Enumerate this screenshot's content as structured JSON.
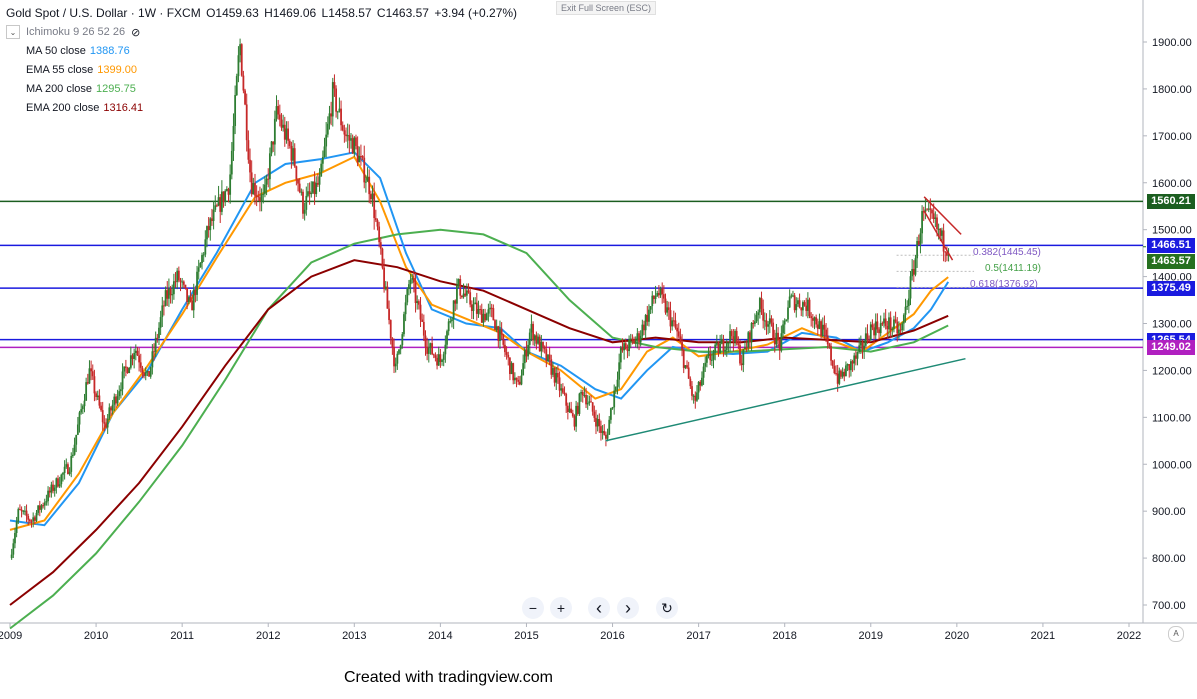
{
  "header": {
    "symbol": "Gold Spot / U.S. Dollar · 1W · FXCM",
    "open": "O1459.63",
    "high": "H1469.06",
    "low": "L1458.57",
    "close": "C1463.57",
    "change": "+3.94 (+0.27%)",
    "ichimoku": "Ichimoku 9 26 52 26",
    "exit_fullscreen": "Exit Full Screen (ESC)"
  },
  "indicators": [
    {
      "name": "MA 50 close",
      "value": "1388.76",
      "color": "#2196f3"
    },
    {
      "name": "EMA 55 close",
      "value": "1399.00",
      "color": "#ff9800"
    },
    {
      "name": "MA 200 close",
      "value": "1295.75",
      "color": "#4caf50"
    },
    {
      "name": "EMA 200 close",
      "value": "1316.41",
      "color": "#8b0000"
    }
  ],
  "price_labels": [
    {
      "text": "1560.21",
      "color": "#1b5e20"
    },
    {
      "text": "1466.51",
      "color": "#1a1adf"
    },
    {
      "text": "1463.57",
      "color": "#26701f"
    },
    {
      "text": "1375.49",
      "color": "#1a1adf"
    },
    {
      "text": "1265.54",
      "color": "#1a1adf"
    },
    {
      "text": "1249.02",
      "color": "#b020c0"
    }
  ],
  "fib_labels": [
    {
      "text": "0.382(1445.45)",
      "color": "#7e57c2"
    },
    {
      "text": "0.5(1411.19)",
      "color": "#43a047"
    },
    {
      "text": "0.618(1376.92)",
      "color": "#7e57c2"
    }
  ],
  "toolbar": {
    "zoom_out": "−",
    "zoom_in": "+",
    "scroll_left": "‹",
    "scroll_right": "›",
    "reset": "↻",
    "auto_scale": "A"
  },
  "footer": "Created with tradingview.com",
  "chart_data": {
    "type": "candlestick",
    "ylim": [
      660,
      1980
    ],
    "y_ticks": [
      700,
      800,
      900,
      1000,
      1100,
      1200,
      1300,
      1400,
      1500,
      1600,
      1700,
      1800,
      1900
    ],
    "y_tick_labels": [
      "700.00",
      "800.00",
      "900.00",
      "1000.00",
      "1100.00",
      "1200.00",
      "1300.00",
      "1400.00",
      "1500.00",
      "1600.00",
      "1700.00",
      "1800.00",
      "1900.00"
    ],
    "x_ticks": [
      "2009",
      "2010",
      "2011",
      "2012",
      "2013",
      "2014",
      "2015",
      "2016",
      "2017",
      "2018",
      "2019",
      "2020",
      "2021",
      "2022"
    ],
    "xlim": [
      2009.0,
      2022.1
    ],
    "price_path": [
      [
        2009.0,
        800
      ],
      [
        2009.1,
        900
      ],
      [
        2009.25,
        880
      ],
      [
        2009.5,
        950
      ],
      [
        2009.7,
        1000
      ],
      [
        2009.92,
        1200
      ],
      [
        2010.1,
        1080
      ],
      [
        2010.3,
        1180
      ],
      [
        2010.45,
        1250
      ],
      [
        2010.6,
        1180
      ],
      [
        2010.8,
        1350
      ],
      [
        2010.95,
        1400
      ],
      [
        2011.1,
        1330
      ],
      [
        2011.3,
        1500
      ],
      [
        2011.55,
        1600
      ],
      [
        2011.67,
        1900
      ],
      [
        2011.8,
        1600
      ],
      [
        2011.95,
        1560
      ],
      [
        2012.1,
        1750
      ],
      [
        2012.3,
        1650
      ],
      [
        2012.4,
        1550
      ],
      [
        2012.6,
        1600
      ],
      [
        2012.75,
        1790
      ],
      [
        2012.9,
        1700
      ],
      [
        2013.0,
        1680
      ],
      [
        2013.2,
        1580
      ],
      [
        2013.3,
        1450
      ],
      [
        2013.48,
        1200
      ],
      [
        2013.65,
        1400
      ],
      [
        2013.85,
        1250
      ],
      [
        2014.0,
        1220
      ],
      [
        2014.2,
        1380
      ],
      [
        2014.45,
        1320
      ],
      [
        2014.6,
        1320
      ],
      [
        2014.9,
        1160
      ],
      [
        2015.05,
        1290
      ],
      [
        2015.3,
        1200
      ],
      [
        2015.55,
        1090
      ],
      [
        2015.65,
        1160
      ],
      [
        2015.92,
        1050
      ],
      [
        2016.1,
        1240
      ],
      [
        2016.3,
        1270
      ],
      [
        2016.52,
        1370
      ],
      [
        2016.75,
        1280
      ],
      [
        2016.95,
        1130
      ],
      [
        2017.1,
        1220
      ],
      [
        2017.4,
        1280
      ],
      [
        2017.5,
        1220
      ],
      [
        2017.7,
        1340
      ],
      [
        2017.95,
        1250
      ],
      [
        2018.05,
        1350
      ],
      [
        2018.25,
        1340
      ],
      [
        2018.45,
        1280
      ],
      [
        2018.62,
        1180
      ],
      [
        2018.85,
        1230
      ],
      [
        2019.0,
        1290
      ],
      [
        2019.2,
        1300
      ],
      [
        2019.35,
        1280
      ],
      [
        2019.5,
        1420
      ],
      [
        2019.6,
        1530
      ],
      [
        2019.72,
        1520
      ],
      [
        2019.85,
        1470
      ],
      [
        2019.9,
        1463.57
      ]
    ],
    "series": [
      {
        "name": "MA 50 close",
        "color": "#2196f3",
        "points": [
          [
            2009.0,
            880
          ],
          [
            2009.4,
            870
          ],
          [
            2009.8,
            960
          ],
          [
            2010.2,
            1110
          ],
          [
            2010.6,
            1200
          ],
          [
            2011.0,
            1330
          ],
          [
            2011.4,
            1450
          ],
          [
            2011.85,
            1600
          ],
          [
            2012.2,
            1640
          ],
          [
            2012.6,
            1650
          ],
          [
            2013.0,
            1665
          ],
          [
            2013.3,
            1610
          ],
          [
            2013.6,
            1450
          ],
          [
            2013.9,
            1330
          ],
          [
            2014.3,
            1300
          ],
          [
            2014.7,
            1290
          ],
          [
            2015.0,
            1240
          ],
          [
            2015.4,
            1210
          ],
          [
            2015.8,
            1160
          ],
          [
            2016.1,
            1140
          ],
          [
            2016.4,
            1200
          ],
          [
            2016.7,
            1250
          ],
          [
            2017.0,
            1240
          ],
          [
            2017.4,
            1235
          ],
          [
            2017.8,
            1240
          ],
          [
            2018.2,
            1280
          ],
          [
            2018.6,
            1270
          ],
          [
            2018.9,
            1240
          ],
          [
            2019.2,
            1260
          ],
          [
            2019.5,
            1290
          ],
          [
            2019.7,
            1330
          ],
          [
            2019.9,
            1388.76
          ]
        ]
      },
      {
        "name": "EMA 55 close",
        "color": "#ff9800",
        "points": [
          [
            2009.0,
            860
          ],
          [
            2009.4,
            880
          ],
          [
            2009.8,
            980
          ],
          [
            2010.2,
            1110
          ],
          [
            2010.6,
            1210
          ],
          [
            2011.0,
            1320
          ],
          [
            2011.4,
            1440
          ],
          [
            2011.85,
            1570
          ],
          [
            2012.2,
            1600
          ],
          [
            2012.6,
            1620
          ],
          [
            2013.0,
            1655
          ],
          [
            2013.3,
            1560
          ],
          [
            2013.6,
            1420
          ],
          [
            2013.9,
            1340
          ],
          [
            2014.3,
            1310
          ],
          [
            2014.7,
            1280
          ],
          [
            2015.0,
            1240
          ],
          [
            2015.4,
            1200
          ],
          [
            2015.8,
            1140
          ],
          [
            2016.1,
            1160
          ],
          [
            2016.4,
            1240
          ],
          [
            2016.7,
            1270
          ],
          [
            2017.0,
            1230
          ],
          [
            2017.4,
            1240
          ],
          [
            2017.8,
            1255
          ],
          [
            2018.2,
            1290
          ],
          [
            2018.6,
            1260
          ],
          [
            2018.9,
            1240
          ],
          [
            2019.2,
            1280
          ],
          [
            2019.5,
            1320
          ],
          [
            2019.7,
            1370
          ],
          [
            2019.9,
            1399.0
          ]
        ]
      },
      {
        "name": "MA 200 close",
        "color": "#4caf50",
        "points": [
          [
            2009.0,
            650
          ],
          [
            2009.5,
            720
          ],
          [
            2010.0,
            810
          ],
          [
            2010.5,
            920
          ],
          [
            2011.0,
            1040
          ],
          [
            2011.5,
            1180
          ],
          [
            2012.0,
            1330
          ],
          [
            2012.5,
            1430
          ],
          [
            2013.0,
            1470
          ],
          [
            2013.5,
            1490
          ],
          [
            2014.0,
            1500
          ],
          [
            2014.5,
            1490
          ],
          [
            2015.0,
            1450
          ],
          [
            2015.5,
            1350
          ],
          [
            2016.0,
            1270
          ],
          [
            2016.5,
            1250
          ],
          [
            2017.0,
            1240
          ],
          [
            2017.5,
            1240
          ],
          [
            2018.0,
            1245
          ],
          [
            2018.5,
            1250
          ],
          [
            2019.0,
            1240
          ],
          [
            2019.5,
            1260
          ],
          [
            2019.9,
            1295.75
          ]
        ]
      },
      {
        "name": "EMA 200 close",
        "color": "#8b0000",
        "points": [
          [
            2009.0,
            700
          ],
          [
            2009.5,
            770
          ],
          [
            2010.0,
            860
          ],
          [
            2010.5,
            960
          ],
          [
            2011.0,
            1080
          ],
          [
            2011.5,
            1210
          ],
          [
            2012.0,
            1330
          ],
          [
            2012.5,
            1400
          ],
          [
            2013.0,
            1435
          ],
          [
            2013.5,
            1420
          ],
          [
            2014.0,
            1390
          ],
          [
            2014.5,
            1370
          ],
          [
            2015.0,
            1330
          ],
          [
            2015.5,
            1290
          ],
          [
            2016.0,
            1260
          ],
          [
            2016.5,
            1270
          ],
          [
            2017.0,
            1260
          ],
          [
            2017.5,
            1260
          ],
          [
            2018.0,
            1270
          ],
          [
            2018.5,
            1265
          ],
          [
            2019.0,
            1260
          ],
          [
            2019.5,
            1285
          ],
          [
            2019.9,
            1316.41
          ]
        ]
      }
    ],
    "horizontal_levels": [
      {
        "value": 1560.21,
        "color": "#1b5e20"
      },
      {
        "value": 1466.51,
        "color": "#1a1adf"
      },
      {
        "value": 1375.49,
        "color": "#1a1adf"
      },
      {
        "value": 1265.54,
        "color": "#1a1adf"
      },
      {
        "value": 1249.02,
        "color": "#b020c0"
      }
    ],
    "trendlines": [
      {
        "color": "#1e8a75",
        "from": [
          2015.92,
          1050
        ],
        "to": [
          2020.1,
          1225
        ]
      },
      {
        "color": "#c62828",
        "from": [
          2019.62,
          1570
        ],
        "to": [
          2020.05,
          1490
        ]
      },
      {
        "color": "#c62828",
        "from": [
          2019.62,
          1540
        ],
        "to": [
          2019.95,
          1435
        ]
      }
    ],
    "fib_levels": [
      {
        "ratio": 0.382,
        "value": 1445.45
      },
      {
        "ratio": 0.5,
        "value": 1411.19
      },
      {
        "ratio": 0.618,
        "value": 1376.92
      }
    ]
  }
}
